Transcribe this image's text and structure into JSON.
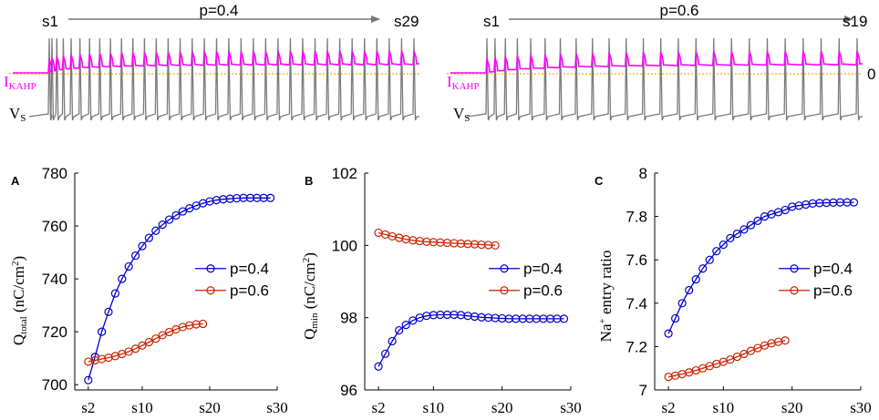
{
  "colors": {
    "p04": "#0000cc",
    "p06": "#cc2200",
    "ikahp": "#ff00ff",
    "vs": "#7a7a7a",
    "zero_line": "#ffaa00",
    "ikahp_baseline": "#ff0000",
    "arrow": "#777777"
  },
  "traces": [
    {
      "p_label": "p=0.4",
      "start_label": "s1",
      "end_label": "s29",
      "ikahp_label": "I",
      "ikahp_sub": "KAHP",
      "vs_label": "V",
      "vs_sub": "S",
      "zero_label": "",
      "spike_count": 34
    },
    {
      "p_label": "p=0.6",
      "start_label": "s1",
      "end_label": "s19",
      "ikahp_label": "I",
      "ikahp_sub": "KAHP",
      "vs_label": "V",
      "vs_sub": "S",
      "zero_label": "0",
      "spike_count": 24
    }
  ],
  "chart_data": [
    {
      "panel": "A",
      "type": "line",
      "ylabel_main": "Q",
      "ylabel_sub": "total",
      "ylabel_unit": " (nC/cm",
      "ylabel_sup": "2",
      "ylabel_close": ")",
      "ylim": [
        698,
        780
      ],
      "yticks": [
        700,
        720,
        740,
        760,
        780
      ],
      "xlim": [
        0,
        30
      ],
      "xticks": [
        2,
        10,
        20,
        30
      ],
      "xticklabels": [
        "s2",
        "s10",
        "s20",
        "s30"
      ],
      "legend": "right",
      "series": [
        {
          "name": "p=0.4",
          "color": "#0000cc",
          "x": [
            2,
            3,
            4,
            5,
            6,
            7,
            8,
            9,
            10,
            11,
            12,
            13,
            14,
            15,
            16,
            17,
            18,
            19,
            20,
            21,
            22,
            23,
            24,
            25,
            26,
            27,
            28,
            29
          ],
          "y": [
            701.7,
            710.5,
            720.0,
            727.5,
            734.5,
            740.0,
            744.7,
            748.8,
            752.4,
            755.5,
            758.2,
            760.5,
            762.4,
            764.0,
            765.5,
            766.7,
            767.7,
            768.6,
            769.3,
            769.8,
            770.1,
            770.3,
            770.5,
            770.6,
            770.6,
            770.6,
            770.6,
            770.6
          ]
        },
        {
          "name": "p=0.6",
          "color": "#cc2200",
          "x": [
            2,
            3,
            4,
            5,
            6,
            7,
            8,
            9,
            10,
            11,
            12,
            13,
            14,
            15,
            16,
            17,
            18,
            19
          ],
          "y": [
            708.7,
            709.2,
            709.7,
            710.2,
            710.8,
            711.6,
            712.5,
            713.6,
            714.8,
            716.1,
            717.4,
            718.7,
            719.9,
            720.9,
            721.8,
            722.4,
            722.8,
            723.0
          ]
        }
      ]
    },
    {
      "panel": "B",
      "type": "line",
      "ylabel_main": "Q",
      "ylabel_sub": "min",
      "ylabel_unit": " (nC/cm",
      "ylabel_sup": "2",
      "ylabel_close": ")",
      "ylim": [
        96,
        102
      ],
      "yticks": [
        96,
        98,
        100,
        102
      ],
      "xlim": [
        0,
        30
      ],
      "xticks": [
        2,
        10,
        20,
        30
      ],
      "xticklabels": [
        "s2",
        "s10",
        "s20",
        "s30"
      ],
      "legend": "right",
      "series": [
        {
          "name": "p=0.4",
          "color": "#0000cc",
          "x": [
            2,
            3,
            4,
            5,
            6,
            7,
            8,
            9,
            10,
            11,
            12,
            13,
            14,
            15,
            16,
            17,
            18,
            19,
            20,
            21,
            22,
            23,
            24,
            25,
            26,
            27,
            28,
            29
          ],
          "y": [
            96.65,
            97.0,
            97.35,
            97.65,
            97.8,
            97.92,
            98.0,
            98.05,
            98.07,
            98.08,
            98.08,
            98.08,
            98.07,
            98.05,
            98.03,
            98.01,
            98.0,
            97.99,
            97.98,
            97.97,
            97.97,
            97.97,
            97.97,
            97.97,
            97.97,
            97.97,
            97.97,
            97.97
          ]
        },
        {
          "name": "p=0.6",
          "color": "#cc2200",
          "x": [
            2,
            3,
            4,
            5,
            6,
            7,
            8,
            9,
            10,
            11,
            12,
            13,
            14,
            15,
            16,
            17,
            18,
            19
          ],
          "y": [
            100.35,
            100.3,
            100.25,
            100.21,
            100.17,
            100.14,
            100.12,
            100.1,
            100.09,
            100.08,
            100.07,
            100.06,
            100.05,
            100.04,
            100.03,
            100.02,
            100.01,
            100.0
          ]
        }
      ]
    },
    {
      "panel": "C",
      "type": "line",
      "ylabel_main": "Na",
      "ylabel_sup_main": "+",
      "ylabel_unit": " entry ratio",
      "ylim": [
        7,
        8
      ],
      "yticks": [
        7,
        7.2,
        7.4,
        7.6,
        7.8,
        8
      ],
      "xlim": [
        0,
        30
      ],
      "xticks": [
        2,
        10,
        20,
        30
      ],
      "xticklabels": [
        "s2",
        "s10",
        "s20",
        "s30"
      ],
      "legend": "right",
      "series": [
        {
          "name": "p=0.4",
          "color": "#0000cc",
          "x": [
            2,
            3,
            4,
            5,
            6,
            7,
            8,
            9,
            10,
            11,
            12,
            13,
            14,
            15,
            16,
            17,
            18,
            19,
            20,
            21,
            22,
            23,
            24,
            25,
            26,
            27,
            28,
            29
          ],
          "y": [
            7.26,
            7.33,
            7.4,
            7.46,
            7.51,
            7.56,
            7.6,
            7.64,
            7.67,
            7.7,
            7.72,
            7.74,
            7.76,
            7.78,
            7.8,
            7.81,
            7.82,
            7.83,
            7.845,
            7.85,
            7.855,
            7.86,
            7.862,
            7.863,
            7.864,
            7.865,
            7.865,
            7.865
          ]
        },
        {
          "name": "p=0.6",
          "color": "#cc2200",
          "x": [
            2,
            3,
            4,
            5,
            6,
            7,
            8,
            9,
            10,
            11,
            12,
            13,
            14,
            15,
            16,
            17,
            18,
            19
          ],
          "y": [
            7.06,
            7.066,
            7.073,
            7.081,
            7.09,
            7.1,
            7.11,
            7.12,
            7.13,
            7.14,
            7.153,
            7.166,
            7.18,
            7.193,
            7.205,
            7.215,
            7.222,
            7.228
          ]
        }
      ]
    }
  ]
}
